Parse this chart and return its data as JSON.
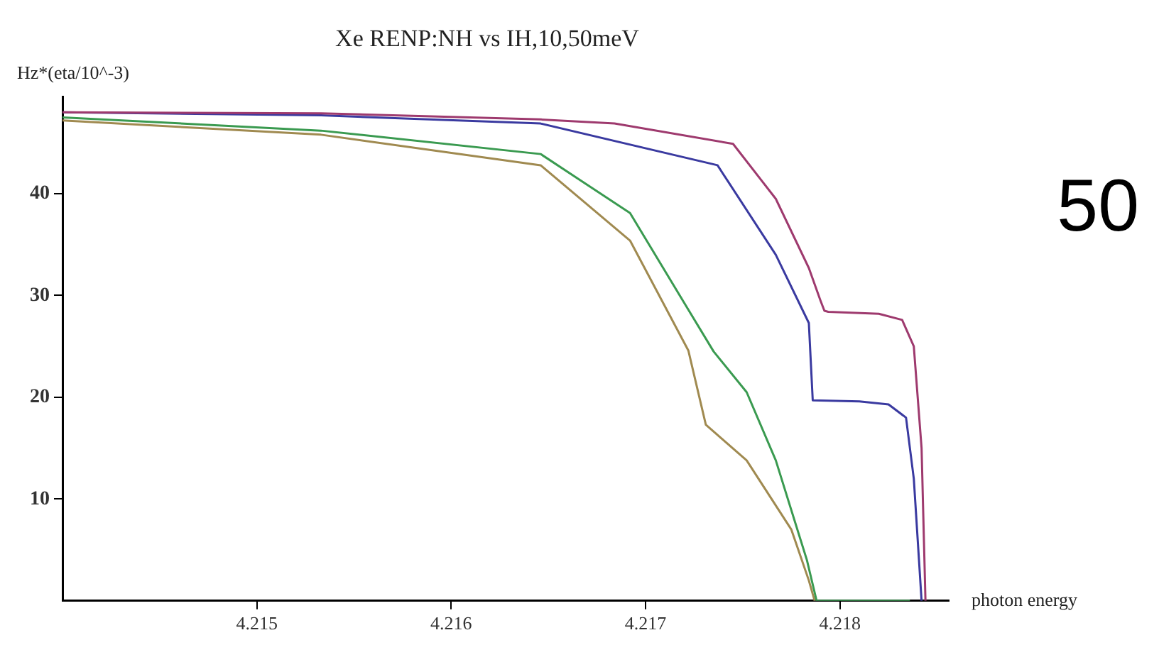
{
  "chart_data": {
    "type": "line",
    "title": "Xe RENP:NH vs IH,10,50meV",
    "xlabel": "photon energy",
    "ylabel": "Hz*(eta/10^-3)",
    "annotations": [
      "50"
    ],
    "xlim": [
      4.214,
      4.21856
    ],
    "ylim": [
      0,
      49.5
    ],
    "xticks": [
      4.215,
      4.216,
      4.217,
      4.218
    ],
    "yticks": [
      10,
      20,
      30,
      40
    ],
    "grid": false,
    "legend": false,
    "marker": "none",
    "line_style": "solid",
    "series": [
      {
        "color": "#9e3a6e",
        "x": [
          4.214,
          4.21533,
          4.21646,
          4.21684,
          4.21745,
          4.21767,
          4.21784,
          4.2179,
          4.21792,
          4.21794,
          4.2182,
          4.21832,
          4.21838,
          4.21842,
          4.21844
        ],
        "values": [
          48,
          47.9,
          47.3,
          46.9,
          44.9,
          39.5,
          32.7,
          29.5,
          28.5,
          28.4,
          28.2,
          27.6,
          25,
          15,
          0
        ]
      },
      {
        "color": "#3a3aa0",
        "x": [
          4.214,
          4.21533,
          4.21646,
          4.21737,
          4.21767,
          4.21784,
          4.21786,
          4.2181,
          4.21825,
          4.21834,
          4.21838,
          4.21842
        ],
        "values": [
          48,
          47.7,
          46.9,
          42.8,
          34,
          27.3,
          19.7,
          19.6,
          19.3,
          18,
          12,
          0
        ]
      },
      {
        "color": "#3a9a50",
        "x": [
          4.214,
          4.21533,
          4.21646,
          4.21692,
          4.21722,
          4.21735,
          4.21752,
          4.21767,
          4.21783,
          4.21788,
          4.21836
        ],
        "values": [
          47.5,
          46.2,
          43.9,
          38.1,
          28.6,
          24.5,
          20.5,
          13.8,
          4,
          0,
          0
        ]
      },
      {
        "color": "#a08a50",
        "x": [
          4.214,
          4.21533,
          4.21646,
          4.21692,
          4.21722,
          4.21731,
          4.21752,
          4.21775,
          4.21784,
          4.21787
        ],
        "values": [
          47.2,
          45.8,
          42.8,
          35.4,
          24.6,
          17.3,
          13.8,
          7,
          2,
          0
        ]
      }
    ]
  }
}
